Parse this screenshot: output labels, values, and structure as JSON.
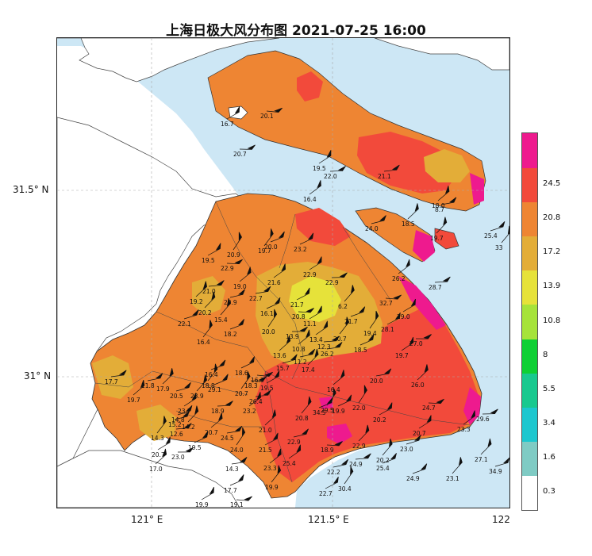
{
  "title": "上海日极大风分布图 2021-07-25 16:00",
  "axes": {
    "x_ticks": [
      "121° E",
      "121.5° E",
      "122"
    ],
    "y_ticks": [
      "31.5° N",
      "31° N"
    ]
  },
  "legend": {
    "levels": [
      "0.3",
      "1.6",
      "3.4",
      "5.5",
      "8",
      "10.8",
      "13.9",
      "17.2",
      "20.8",
      "24.5"
    ],
    "colors": [
      "#ffffff",
      "#7fcbc4",
      "#1dc7cf",
      "#19c98f",
      "#0fd034",
      "#a6e33a",
      "#e6e23a",
      "#e3ad38",
      "#ee8533",
      "#f24a3b",
      "#ee1a8e"
    ]
  },
  "stations": [
    {
      "v": "20.1",
      "x": 264,
      "y": 92
    },
    {
      "v": "16.7",
      "x": 214,
      "y": 102
    },
    {
      "v": "20.7",
      "x": 230,
      "y": 140
    },
    {
      "v": "19.5",
      "x": 330,
      "y": 158
    },
    {
      "v": "22.0",
      "x": 344,
      "y": 168
    },
    {
      "v": "16.4",
      "x": 318,
      "y": 197
    },
    {
      "v": "21.1",
      "x": 412,
      "y": 168
    },
    {
      "v": "18.0",
      "x": 480,
      "y": 205
    },
    {
      "v": "8.7",
      "x": 484,
      "y": 210
    },
    {
      "v": "18.5",
      "x": 442,
      "y": 228
    },
    {
      "v": "24.0",
      "x": 396,
      "y": 234
    },
    {
      "v": "19.7",
      "x": 478,
      "y": 246
    },
    {
      "v": "25.4",
      "x": 546,
      "y": 243
    },
    {
      "v": "33",
      "x": 560,
      "y": 258
    },
    {
      "v": "20.0",
      "x": 269,
      "y": 257
    },
    {
      "v": "19.7",
      "x": 261,
      "y": 262
    },
    {
      "v": "23.2",
      "x": 306,
      "y": 260
    },
    {
      "v": "20.9",
      "x": 222,
      "y": 267
    },
    {
      "v": "19.5",
      "x": 190,
      "y": 274
    },
    {
      "v": "22.9",
      "x": 214,
      "y": 284
    },
    {
      "v": "22.9",
      "x": 318,
      "y": 292
    },
    {
      "v": "22.9",
      "x": 346,
      "y": 302
    },
    {
      "v": "21.6",
      "x": 273,
      "y": 302
    },
    {
      "v": "21.0",
      "x": 191,
      "y": 313
    },
    {
      "v": "19.0",
      "x": 230,
      "y": 307
    },
    {
      "v": "22.7",
      "x": 250,
      "y": 322
    },
    {
      "v": "19.2",
      "x": 175,
      "y": 326
    },
    {
      "v": "20.9",
      "x": 218,
      "y": 327
    },
    {
      "v": "20.2",
      "x": 186,
      "y": 340
    },
    {
      "v": "22.1",
      "x": 160,
      "y": 354
    },
    {
      "v": "15.4",
      "x": 206,
      "y": 349
    },
    {
      "v": "18.2",
      "x": 218,
      "y": 367
    },
    {
      "v": "16.4",
      "x": 184,
      "y": 377
    },
    {
      "v": "16.1",
      "x": 264,
      "y": 341
    },
    {
      "v": "20.0",
      "x": 266,
      "y": 364
    },
    {
      "v": "21.7",
      "x": 302,
      "y": 330
    },
    {
      "v": "20.8",
      "x": 304,
      "y": 345
    },
    {
      "v": "11.1",
      "x": 318,
      "y": 354
    },
    {
      "v": "13.9",
      "x": 296,
      "y": 370
    },
    {
      "v": "13.4",
      "x": 326,
      "y": 374
    },
    {
      "v": "12.3",
      "x": 336,
      "y": 383
    },
    {
      "v": "10.8",
      "x": 304,
      "y": 386
    },
    {
      "v": "26.2",
      "x": 340,
      "y": 392
    },
    {
      "v": "13.6",
      "x": 280,
      "y": 394
    },
    {
      "v": "11.2",
      "x": 306,
      "y": 402
    },
    {
      "v": "17.4",
      "x": 316,
      "y": 412
    },
    {
      "v": "15.7",
      "x": 284,
      "y": 410
    },
    {
      "v": "6.2",
      "x": 362,
      "y": 332
    },
    {
      "v": "21.7",
      "x": 370,
      "y": 351
    },
    {
      "v": "20.7",
      "x": 356,
      "y": 373
    },
    {
      "v": "18.5",
      "x": 382,
      "y": 387
    },
    {
      "v": "19.4",
      "x": 394,
      "y": 366
    },
    {
      "v": "28.1",
      "x": 416,
      "y": 361
    },
    {
      "v": "32.7",
      "x": 414,
      "y": 328
    },
    {
      "v": "29.0",
      "x": 436,
      "y": 345
    },
    {
      "v": "27.0",
      "x": 452,
      "y": 379
    },
    {
      "v": "19.7",
      "x": 434,
      "y": 394
    },
    {
      "v": "28.7",
      "x": 476,
      "y": 308
    },
    {
      "v": "26.2",
      "x": 430,
      "y": 297
    },
    {
      "v": "17.7",
      "x": 68,
      "y": 427
    },
    {
      "v": "19.7",
      "x": 96,
      "y": 450
    },
    {
      "v": "11.8",
      "x": 114,
      "y": 432
    },
    {
      "v": "17.9",
      "x": 133,
      "y": 436
    },
    {
      "v": "20.5",
      "x": 150,
      "y": 445
    },
    {
      "v": "23.9",
      "x": 176,
      "y": 445
    },
    {
      "v": "16.4",
      "x": 194,
      "y": 418
    },
    {
      "v": "18.8",
      "x": 190,
      "y": 432
    },
    {
      "v": "29.1",
      "x": 198,
      "y": 437
    },
    {
      "v": "20.7",
      "x": 232,
      "y": 442
    },
    {
      "v": "18.6",
      "x": 232,
      "y": 416
    },
    {
      "v": "16.3",
      "x": 252,
      "y": 425
    },
    {
      "v": "19.5",
      "x": 264,
      "y": 435
    },
    {
      "v": "18.3",
      "x": 244,
      "y": 432
    },
    {
      "v": "23.7",
      "x": 160,
      "y": 464
    },
    {
      "v": "18.9",
      "x": 202,
      "y": 464
    },
    {
      "v": "23.2",
      "x": 242,
      "y": 464
    },
    {
      "v": "26.4",
      "x": 250,
      "y": 452
    },
    {
      "v": "16.4",
      "x": 348,
      "y": 437
    },
    {
      "v": "20.0",
      "x": 402,
      "y": 426
    },
    {
      "v": "26.0",
      "x": 454,
      "y": 431
    },
    {
      "v": "15.2",
      "x": 148,
      "y": 481
    },
    {
      "v": "14.2",
      "x": 165,
      "y": 484
    },
    {
      "v": "14.8",
      "x": 152,
      "y": 475
    },
    {
      "v": "20.8",
      "x": 308,
      "y": 473
    },
    {
      "v": "34.5",
      "x": 330,
      "y": 466
    },
    {
      "v": "29.5",
      "x": 340,
      "y": 463
    },
    {
      "v": "19.9",
      "x": 354,
      "y": 464
    },
    {
      "v": "22.0",
      "x": 380,
      "y": 460
    },
    {
      "v": "20.2",
      "x": 406,
      "y": 475
    },
    {
      "v": "24.7",
      "x": 468,
      "y": 460
    },
    {
      "v": "20.7",
      "x": 456,
      "y": 492
    },
    {
      "v": "29.6",
      "x": 536,
      "y": 474
    },
    {
      "v": "23.3",
      "x": 512,
      "y": 487
    },
    {
      "v": "12.6",
      "x": 150,
      "y": 493
    },
    {
      "v": "20.7",
      "x": 194,
      "y": 491
    },
    {
      "v": "24.5",
      "x": 214,
      "y": 498
    },
    {
      "v": "21.0",
      "x": 262,
      "y": 488
    },
    {
      "v": "22.9",
      "x": 298,
      "y": 503
    },
    {
      "v": "22.9",
      "x": 380,
      "y": 508
    },
    {
      "v": "23.0",
      "x": 440,
      "y": 512
    },
    {
      "v": "20.2",
      "x": 410,
      "y": 526
    },
    {
      "v": "25.4",
      "x": 410,
      "y": 536
    },
    {
      "v": "14.3",
      "x": 126,
      "y": 498
    },
    {
      "v": "19.5",
      "x": 173,
      "y": 510
    },
    {
      "v": "24.0",
      "x": 226,
      "y": 513
    },
    {
      "v": "21.5",
      "x": 262,
      "y": 513
    },
    {
      "v": "18.9",
      "x": 340,
      "y": 513
    },
    {
      "v": "20.7",
      "x": 127,
      "y": 519
    },
    {
      "v": "23.0",
      "x": 152,
      "y": 522
    },
    {
      "v": "25.4",
      "x": 292,
      "y": 530
    },
    {
      "v": "24.9",
      "x": 376,
      "y": 531
    },
    {
      "v": "23.3",
      "x": 268,
      "y": 536
    },
    {
      "v": "14.3",
      "x": 220,
      "y": 537
    },
    {
      "v": "17.0",
      "x": 124,
      "y": 537
    },
    {
      "v": "22.2",
      "x": 348,
      "y": 541
    },
    {
      "v": "27.1",
      "x": 534,
      "y": 525
    },
    {
      "v": "34.9",
      "x": 552,
      "y": 540
    },
    {
      "v": "23.1",
      "x": 498,
      "y": 549
    },
    {
      "v": "24.9",
      "x": 448,
      "y": 549
    },
    {
      "v": "19.9",
      "x": 270,
      "y": 560
    },
    {
      "v": "17.7",
      "x": 218,
      "y": 564
    },
    {
      "v": "30.4",
      "x": 362,
      "y": 562
    },
    {
      "v": "22.7",
      "x": 338,
      "y": 568
    },
    {
      "v": "19.1",
      "x": 226,
      "y": 582
    },
    {
      "v": "19.9",
      "x": 182,
      "y": 582
    },
    {
      "v": "21.6",
      "x": 274,
      "y": 610
    }
  ]
}
